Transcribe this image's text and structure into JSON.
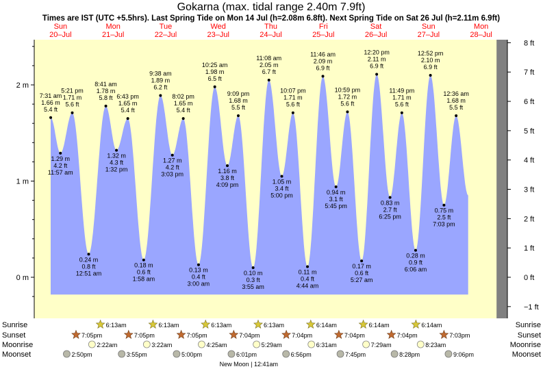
{
  "header": {
    "title": "Gokarna (max. tidal range 2.40m 7.9ft)",
    "subtitle": "Times are IST (UTC +5.5hrs). Last Spring Tide on Mon 14 Jul (h=2.08m 6.8ft). Next Spring Tide on Sat 26 Jul (h=2.11m 6.9ft)"
  },
  "colors": {
    "day": "#ffffc8",
    "night": "#808080",
    "water": "#9aa6ff",
    "day_header": "#ff0000"
  },
  "chart_data": {
    "type": "area",
    "title": "Gokarna (max. tidal range 2.40m 7.9ft)",
    "x_unit": "hours from 00:00 Sun 20 Jul",
    "x_range": [
      0,
      216
    ],
    "y_left_label": "m",
    "y_left_ticks": [
      {
        "value": 0,
        "label": "0 m"
      },
      {
        "value": 1,
        "label": "1 m"
      },
      {
        "value": 2,
        "label": "2 m"
      }
    ],
    "y_right_ticks": [
      {
        "ft": -1,
        "label": "−1 ft"
      },
      {
        "ft": 0,
        "label": "0 ft"
      },
      {
        "ft": 1,
        "label": "1 ft"
      },
      {
        "ft": 2,
        "label": "2 ft"
      },
      {
        "ft": 3,
        "label": "3 ft"
      },
      {
        "ft": 4,
        "label": "4 ft"
      },
      {
        "ft": 5,
        "label": "5 ft"
      },
      {
        "ft": 6,
        "label": "6 ft"
      },
      {
        "ft": 7,
        "label": "7 ft"
      },
      {
        "ft": 8,
        "label": "8 ft"
      }
    ],
    "ylim_m": [
      -0.33,
      2.45
    ],
    "days": [
      {
        "name": "Sun",
        "date": "20–Jul"
      },
      {
        "name": "Mon",
        "date": "21–Jul"
      },
      {
        "name": "Tue",
        "date": "22–Jul"
      },
      {
        "name": "Wed",
        "date": "23–Jul"
      },
      {
        "name": "Thu",
        "date": "24–Jul"
      },
      {
        "name": "Fri",
        "date": "25–Jul"
      },
      {
        "name": "Sat",
        "date": "26–Jul"
      },
      {
        "name": "Sun",
        "date": "27–Jul"
      },
      {
        "name": "Mon",
        "date": "28–Jul"
      }
    ],
    "sunrise_hours": [
      6.2,
      30.2167,
      54.2167,
      78.2167,
      102.2167,
      126.2333,
      150.2333,
      174.2333
    ],
    "sunset_hours": [
      19.0833,
      43.0833,
      67.0833,
      91.0667,
      115.0667,
      139.0667,
      163.0667,
      187.05,
      211.05
    ],
    "tides": [
      {
        "t": 7.5167,
        "m": 1.66,
        "time": "7:31 am",
        "h_m": "1.66 m",
        "h_ft": "5.4 ft",
        "type": "high"
      },
      {
        "t": 11.95,
        "m": 1.29,
        "time": "11:57 am",
        "h_m": "1.29 m",
        "h_ft": "4.2 ft",
        "type": "low"
      },
      {
        "t": 17.35,
        "m": 1.71,
        "time": "5:21 pm",
        "h_m": "1.71 m",
        "h_ft": "5.6 ft",
        "type": "high"
      },
      {
        "t": 24.85,
        "m": 0.24,
        "time": "12:51 am",
        "h_m": "0.24 m",
        "h_ft": "0.8 ft",
        "type": "low"
      },
      {
        "t": 32.6833,
        "m": 1.78,
        "time": "8:41 am",
        "h_m": "1.78 m",
        "h_ft": "5.8 ft",
        "type": "high"
      },
      {
        "t": 37.5333,
        "m": 1.32,
        "time": "1:32 pm",
        "h_m": "1.32 m",
        "h_ft": "4.3 ft",
        "type": "low"
      },
      {
        "t": 42.7167,
        "m": 1.65,
        "time": "6:43 pm",
        "h_m": "1.65 m",
        "h_ft": "5.4 ft",
        "type": "high"
      },
      {
        "t": 49.9667,
        "m": 0.18,
        "time": "1:58 am",
        "h_m": "0.18 m",
        "h_ft": "0.6 ft",
        "type": "low"
      },
      {
        "t": 57.6333,
        "m": 1.89,
        "time": "9:38 am",
        "h_m": "1.89 m",
        "h_ft": "6.2 ft",
        "type": "high"
      },
      {
        "t": 63.05,
        "m": 1.27,
        "time": "3:03 pm",
        "h_m": "1.27 m",
        "h_ft": "4.2 ft",
        "type": "low"
      },
      {
        "t": 68.0333,
        "m": 1.65,
        "time": "8:02 pm",
        "h_m": "1.65 m",
        "h_ft": "5.4 ft",
        "type": "high"
      },
      {
        "t": 75.0,
        "m": 0.13,
        "time": "3:00 am",
        "h_m": "0.13 m",
        "h_ft": "0.4 ft",
        "type": "low"
      },
      {
        "t": 82.4167,
        "m": 1.98,
        "time": "10:25 am",
        "h_m": "1.98 m",
        "h_ft": "6.5 ft",
        "type": "high"
      },
      {
        "t": 88.15,
        "m": 1.16,
        "time": "4:09 pm",
        "h_m": "1.16 m",
        "h_ft": "3.8 ft",
        "type": "low"
      },
      {
        "t": 93.15,
        "m": 1.68,
        "time": "9:09 pm",
        "h_m": "1.68 m",
        "h_ft": "5.5 ft",
        "type": "high"
      },
      {
        "t": 99.9167,
        "m": 0.1,
        "time": "3:55 am",
        "h_m": "0.10 m",
        "h_ft": "0.3 ft",
        "type": "low"
      },
      {
        "t": 107.1333,
        "m": 2.05,
        "time": "11:08 am",
        "h_m": "2.05 m",
        "h_ft": "6.7 ft",
        "type": "high"
      },
      {
        "t": 113.0,
        "m": 1.05,
        "time": "5:00 pm",
        "h_m": "1.05 m",
        "h_ft": "3.4 ft",
        "type": "low"
      },
      {
        "t": 118.1167,
        "m": 1.71,
        "time": "10:07 pm",
        "h_m": "1.71 m",
        "h_ft": "5.6 ft",
        "type": "high"
      },
      {
        "t": 124.7333,
        "m": 0.11,
        "time": "4:44 am",
        "h_m": "0.11 m",
        "h_ft": "0.4 ft",
        "type": "low"
      },
      {
        "t": 131.7667,
        "m": 2.09,
        "time": "11:46 am",
        "h_m": "2.09 m",
        "h_ft": "6.9 ft",
        "type": "high"
      },
      {
        "t": 137.75,
        "m": 0.94,
        "time": "5:45 pm",
        "h_m": "0.94 m",
        "h_ft": "3.1 ft",
        "type": "low"
      },
      {
        "t": 142.9833,
        "m": 1.72,
        "time": "10:59 pm",
        "h_m": "1.72 m",
        "h_ft": "5.6 ft",
        "type": "high"
      },
      {
        "t": 149.45,
        "m": 0.17,
        "time": "5:27 am",
        "h_m": "0.17 m",
        "h_ft": "0.6 ft",
        "type": "low"
      },
      {
        "t": 156.3333,
        "m": 2.11,
        "time": "12:20 pm",
        "h_m": "2.11 m",
        "h_ft": "6.9 ft",
        "type": "high"
      },
      {
        "t": 162.4167,
        "m": 0.83,
        "time": "6:25 pm",
        "h_m": "0.83 m",
        "h_ft": "2.7 ft",
        "type": "low"
      },
      {
        "t": 167.8167,
        "m": 1.71,
        "time": "11:49 pm",
        "h_m": "1.71 m",
        "h_ft": "5.6 ft",
        "type": "high"
      },
      {
        "t": 174.1,
        "m": 0.28,
        "time": "6:06 am",
        "h_m": "0.28 m",
        "h_ft": "0.9 ft",
        "type": "low"
      },
      {
        "t": 180.8667,
        "m": 2.1,
        "time": "12:52 pm",
        "h_m": "2.10 m",
        "h_ft": "6.9 ft",
        "type": "high"
      },
      {
        "t": 187.05,
        "m": 0.75,
        "time": "7:03 pm",
        "h_m": "0.75 m",
        "h_ft": "2.5 ft",
        "type": "low"
      },
      {
        "t": 192.6,
        "m": 1.68,
        "time": "12:36 am",
        "h_m": "1.68 m",
        "h_ft": "5.5 ft",
        "type": "high"
      }
    ]
  },
  "events": {
    "row_labels": [
      "Sunrise",
      "Sunset",
      "Moonrise",
      "Moonset"
    ],
    "sunrise": [
      {
        "t": 30.2167,
        "label": "6:13am"
      },
      {
        "t": 54.2167,
        "label": "6:13am"
      },
      {
        "t": 78.2167,
        "label": "6:13am"
      },
      {
        "t": 102.2167,
        "label": "6:13am"
      },
      {
        "t": 126.2333,
        "label": "6:14am"
      },
      {
        "t": 150.2333,
        "label": "6:14am"
      },
      {
        "t": 174.2333,
        "label": "6:14am"
      }
    ],
    "sunset": [
      {
        "t": 19.0833,
        "label": "7:05pm"
      },
      {
        "t": 43.0833,
        "label": "7:05pm"
      },
      {
        "t": 67.0833,
        "label": "7:05pm"
      },
      {
        "t": 91.0667,
        "label": "7:04pm"
      },
      {
        "t": 115.0667,
        "label": "7:04pm"
      },
      {
        "t": 139.0667,
        "label": "7:04pm"
      },
      {
        "t": 163.0667,
        "label": "7:04pm"
      },
      {
        "t": 187.05,
        "label": "7:03pm"
      }
    ],
    "moonrise": [
      {
        "t": 26.3667,
        "label": "2:22am"
      },
      {
        "t": 51.3667,
        "label": "3:22am"
      },
      {
        "t": 76.4167,
        "label": "4:25am"
      },
      {
        "t": 101.4833,
        "label": "5:29am"
      },
      {
        "t": 126.5167,
        "label": "6:31am"
      },
      {
        "t": 151.4833,
        "label": "7:29am"
      },
      {
        "t": 176.3833,
        "label": "8:23am"
      }
    ],
    "moonset": [
      {
        "t": 14.8333,
        "label": "2:50pm"
      },
      {
        "t": 39.9167,
        "label": "3:55pm"
      },
      {
        "t": 65.0,
        "label": "5:00pm"
      },
      {
        "t": 90.0167,
        "label": "6:01pm"
      },
      {
        "t": 114.9333,
        "label": "6:56pm"
      },
      {
        "t": 139.75,
        "label": "7:45pm"
      },
      {
        "t": 164.4667,
        "label": "8:28pm"
      },
      {
        "t": 189.1,
        "label": "9:06pm"
      }
    ],
    "moon_phase": {
      "t": 96.7,
      "label": "New Moon | 12:41am"
    }
  }
}
